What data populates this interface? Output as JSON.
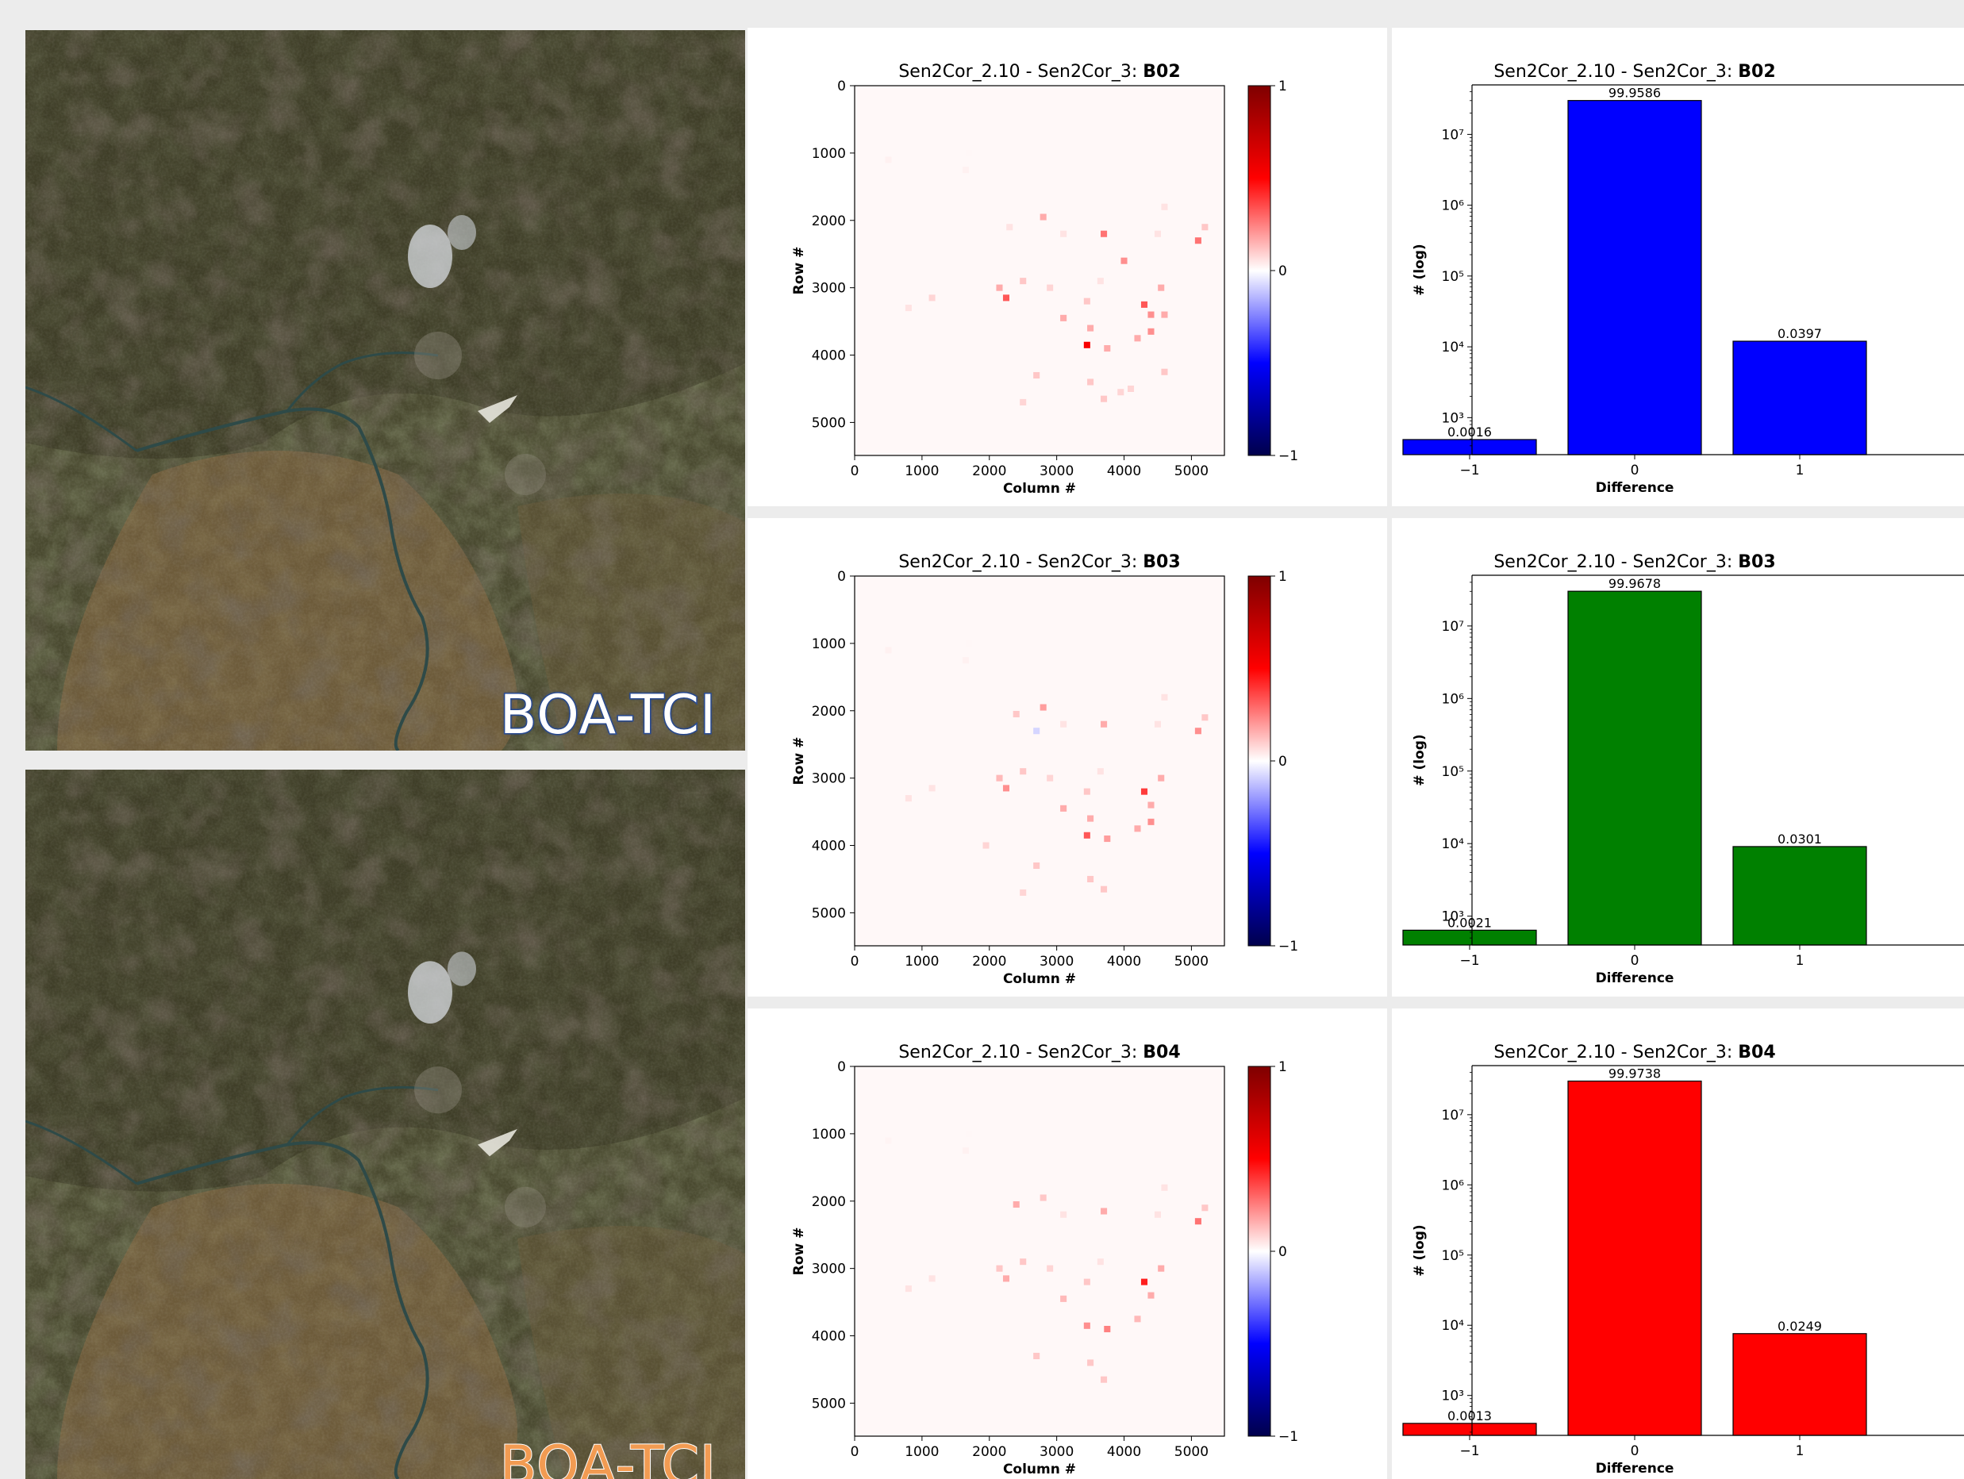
{
  "images": [
    {
      "label": "BOA-TCI",
      "label_color": "blue"
    },
    {
      "label": "BOA-TCI",
      "label_color": "orange"
    }
  ],
  "colorbar": {
    "max_label": "1",
    "mid_label": "0",
    "min_label": "−1"
  },
  "chart_data": [
    {
      "type": "heatmap",
      "title_prefix": "Sen2Cor_2.10 - Sen2Cor_3: ",
      "band": "B02",
      "xlabel": "Column #",
      "ylabel": "Row #",
      "xticks": [
        0,
        1000,
        2000,
        3000,
        4000,
        5000
      ],
      "yticks": [
        0,
        1000,
        2000,
        3000,
        4000,
        5000
      ],
      "xlim": [
        0,
        5490
      ],
      "ylim": [
        5490,
        0
      ],
      "clim": [
        -1,
        1
      ],
      "colormap": "seismic",
      "cells": [
        [
          500,
          1100,
          0.05
        ],
        [
          1650,
          1250,
          0.05
        ],
        [
          1700,
          1000,
          0.03
        ],
        [
          2800,
          1950,
          0.3
        ],
        [
          3100,
          2200,
          0.1
        ],
        [
          3700,
          2200,
          0.5
        ],
        [
          4000,
          2600,
          0.4
        ],
        [
          4500,
          2200,
          0.1
        ],
        [
          4600,
          1800,
          0.1
        ],
        [
          5100,
          2300,
          0.5
        ],
        [
          5200,
          2100,
          0.2
        ],
        [
          1150,
          3150,
          0.15
        ],
        [
          2150,
          3000,
          0.3
        ],
        [
          2250,
          3150,
          0.6
        ],
        [
          2500,
          2900,
          0.2
        ],
        [
          3100,
          3450,
          0.3
        ],
        [
          3450,
          3200,
          0.2
        ],
        [
          3500,
          3600,
          0.3
        ],
        [
          3450,
          3850,
          0.95
        ],
        [
          3750,
          3900,
          0.3
        ],
        [
          4300,
          3250,
          0.6
        ],
        [
          4400,
          3400,
          0.4
        ],
        [
          4550,
          3000,
          0.3
        ],
        [
          4600,
          3400,
          0.3
        ],
        [
          4400,
          3650,
          0.4
        ],
        [
          4200,
          3750,
          0.3
        ],
        [
          2700,
          4300,
          0.2
        ],
        [
          2500,
          4700,
          0.15
        ],
        [
          3500,
          4400,
          0.2
        ],
        [
          3700,
          4650,
          0.2
        ],
        [
          3950,
          4550,
          0.15
        ],
        [
          4100,
          4500,
          0.15
        ],
        [
          4600,
          4250,
          0.2
        ],
        [
          800,
          3300,
          0.1
        ],
        [
          2900,
          3000,
          0.15
        ],
        [
          3650,
          2900,
          0.1
        ],
        [
          2300,
          2100,
          0.1
        ]
      ]
    },
    {
      "type": "bar",
      "title_prefix": "Sen2Cor_2.10 - Sen2Cor_3: ",
      "band": "B02",
      "xlabel": "Difference",
      "ylabel": "# (log)",
      "yscale": "log",
      "categories": [
        "−1",
        "0",
        "1"
      ],
      "values": [
        490,
        30100000,
        12000
      ],
      "value_labels": [
        "0.0016",
        "99.9586",
        "0.0397"
      ],
      "color": "#0000ff",
      "yticks": [
        {
          "value": 1000,
          "label": "10³"
        },
        {
          "value": 10000,
          "label": "10⁴"
        },
        {
          "value": 100000,
          "label": "10⁵"
        },
        {
          "value": 1000000,
          "label": "10⁶"
        },
        {
          "value": 10000000,
          "label": "10⁷"
        }
      ],
      "ylim": [
        300,
        50000000
      ]
    },
    {
      "type": "heatmap",
      "title_prefix": "Sen2Cor_2.10 - Sen2Cor_3: ",
      "band": "B03",
      "xlabel": "Column #",
      "ylabel": "Row #",
      "xticks": [
        0,
        1000,
        2000,
        3000,
        4000,
        5000
      ],
      "yticks": [
        0,
        1000,
        2000,
        3000,
        4000,
        5000
      ],
      "xlim": [
        0,
        5490
      ],
      "ylim": [
        5490,
        0
      ],
      "clim": [
        -1,
        1
      ],
      "colormap": "seismic",
      "cells": [
        [
          500,
          1100,
          0.05
        ],
        [
          1650,
          1250,
          0.05
        ],
        [
          1700,
          1000,
          0.03
        ],
        [
          2800,
          1950,
          0.35
        ],
        [
          2400,
          2050,
          0.2
        ],
        [
          2700,
          2300,
          -0.15
        ],
        [
          3100,
          2200,
          0.1
        ],
        [
          3700,
          2200,
          0.3
        ],
        [
          4500,
          2200,
          0.1
        ],
        [
          4600,
          1800,
          0.1
        ],
        [
          5100,
          2300,
          0.4
        ],
        [
          5200,
          2100,
          0.2
        ],
        [
          1150,
          3150,
          0.1
        ],
        [
          2150,
          3000,
          0.25
        ],
        [
          2250,
          3150,
          0.4
        ],
        [
          2500,
          2900,
          0.2
        ],
        [
          3100,
          3450,
          0.3
        ],
        [
          3450,
          3200,
          0.2
        ],
        [
          3500,
          3600,
          0.3
        ],
        [
          3450,
          3850,
          0.6
        ],
        [
          3750,
          3900,
          0.35
        ],
        [
          4300,
          3200,
          0.7
        ],
        [
          4400,
          3400,
          0.3
        ],
        [
          4550,
          3000,
          0.3
        ],
        [
          4400,
          3650,
          0.4
        ],
        [
          4200,
          3750,
          0.3
        ],
        [
          2700,
          4300,
          0.2
        ],
        [
          2500,
          4700,
          0.15
        ],
        [
          1950,
          4000,
          0.15
        ],
        [
          3500,
          4500,
          0.2
        ],
        [
          3700,
          4650,
          0.2
        ],
        [
          800,
          3300,
          0.1
        ],
        [
          2900,
          3000,
          0.15
        ],
        [
          3650,
          2900,
          0.1
        ]
      ]
    },
    {
      "type": "bar",
      "title_prefix": "Sen2Cor_2.10 - Sen2Cor_3: ",
      "band": "B03",
      "xlabel": "Difference",
      "ylabel": "# (log)",
      "yscale": "log",
      "categories": [
        "−1",
        "0",
        "1"
      ],
      "values": [
        640,
        30100000,
        9100
      ],
      "value_labels": [
        "0.0021",
        "99.9678",
        "0.0301"
      ],
      "color": "#008000",
      "yticks": [
        {
          "value": 1000,
          "label": "10³"
        },
        {
          "value": 10000,
          "label": "10⁴"
        },
        {
          "value": 100000,
          "label": "10⁵"
        },
        {
          "value": 1000000,
          "label": "10⁶"
        },
        {
          "value": 10000000,
          "label": "10⁷"
        }
      ],
      "ylim": [
        400,
        50000000
      ]
    },
    {
      "type": "heatmap",
      "title_prefix": "Sen2Cor_2.10 - Sen2Cor_3: ",
      "band": "B04",
      "xlabel": "Column #",
      "ylabel": "Row #",
      "xticks": [
        0,
        1000,
        2000,
        3000,
        4000,
        5000
      ],
      "yticks": [
        0,
        1000,
        2000,
        3000,
        4000,
        5000
      ],
      "xlim": [
        0,
        5490
      ],
      "ylim": [
        5490,
        0
      ],
      "clim": [
        -1,
        1
      ],
      "colormap": "seismic",
      "cells": [
        [
          500,
          1100,
          0.04
        ],
        [
          1650,
          1250,
          0.05
        ],
        [
          1700,
          1000,
          0.03
        ],
        [
          2800,
          1950,
          0.2
        ],
        [
          2400,
          2050,
          0.3
        ],
        [
          3100,
          2200,
          0.1
        ],
        [
          3700,
          2150,
          0.3
        ],
        [
          4500,
          2200,
          0.1
        ],
        [
          4600,
          1800,
          0.1
        ],
        [
          5100,
          2300,
          0.5
        ],
        [
          5200,
          2100,
          0.2
        ],
        [
          1150,
          3150,
          0.1
        ],
        [
          2150,
          3000,
          0.2
        ],
        [
          2250,
          3150,
          0.3
        ],
        [
          2500,
          2900,
          0.2
        ],
        [
          3100,
          3450,
          0.25
        ],
        [
          3450,
          3200,
          0.2
        ],
        [
          3450,
          3850,
          0.4
        ],
        [
          3750,
          3900,
          0.45
        ],
        [
          4300,
          3200,
          0.8
        ],
        [
          4400,
          3400,
          0.3
        ],
        [
          4550,
          3000,
          0.3
        ],
        [
          4200,
          3750,
          0.25
        ],
        [
          2700,
          4300,
          0.2
        ],
        [
          3500,
          4400,
          0.2
        ],
        [
          3700,
          4650,
          0.2
        ],
        [
          800,
          3300,
          0.1
        ],
        [
          2900,
          3000,
          0.15
        ],
        [
          3650,
          2900,
          0.1
        ]
      ]
    },
    {
      "type": "bar",
      "title_prefix": "Sen2Cor_2.10 - Sen2Cor_3: ",
      "band": "B04",
      "xlabel": "Difference",
      "ylabel": "# (log)",
      "yscale": "log",
      "categories": [
        "−1",
        "0",
        "1"
      ],
      "values": [
        400,
        30100000,
        7600
      ],
      "value_labels": [
        "0.0013",
        "99.9738",
        "0.0249"
      ],
      "color": "#ff0000",
      "yticks": [
        {
          "value": 1000,
          "label": "10³"
        },
        {
          "value": 10000,
          "label": "10⁴"
        },
        {
          "value": 100000,
          "label": "10⁵"
        },
        {
          "value": 1000000,
          "label": "10⁶"
        },
        {
          "value": 10000000,
          "label": "10⁷"
        }
      ],
      "ylim": [
        270,
        50000000
      ]
    }
  ]
}
